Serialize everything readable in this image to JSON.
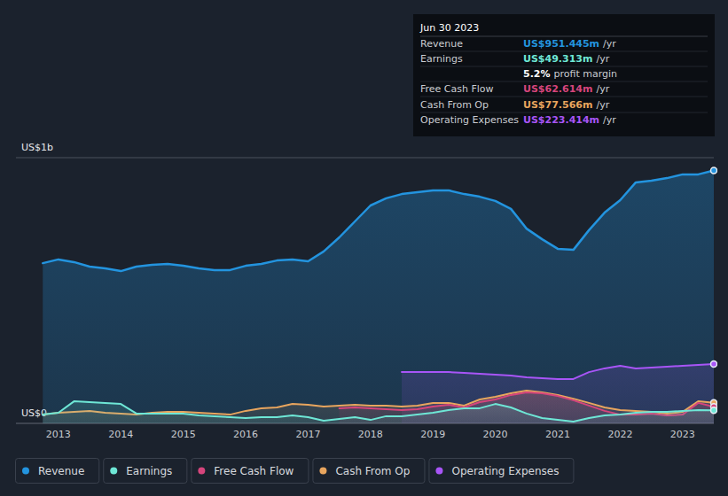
{
  "chart_data": {
    "type": "area",
    "x": [
      2012.75,
      2013.0,
      2013.25,
      2013.5,
      2013.75,
      2014.0,
      2014.25,
      2014.5,
      2014.75,
      2015.0,
      2015.25,
      2015.5,
      2015.75,
      2016.0,
      2016.25,
      2016.5,
      2016.75,
      2017.0,
      2017.25,
      2017.5,
      2017.75,
      2018.0,
      2018.25,
      2018.5,
      2018.75,
      2019.0,
      2019.25,
      2019.5,
      2019.75,
      2020.0,
      2020.25,
      2020.5,
      2020.75,
      2021.0,
      2021.25,
      2021.5,
      2021.75,
      2022.0,
      2022.25,
      2022.5,
      2022.75,
      2023.0,
      2023.25,
      2023.5
    ],
    "series": [
      {
        "name": "Revenue",
        "color": "#2394df",
        "type": "area",
        "values": [
          603,
          617,
          607,
          590,
          583,
          573,
          590,
          597,
          600,
          593,
          583,
          577,
          577,
          593,
          600,
          613,
          617,
          610,
          647,
          700,
          760,
          820,
          847,
          863,
          870,
          877,
          877,
          863,
          853,
          837,
          807,
          733,
          693,
          657,
          653,
          727,
          793,
          840,
          907,
          913,
          923,
          937,
          937,
          951.445
        ]
      },
      {
        "name": "Earnings",
        "color": "#6ee7d6",
        "type": "area",
        "values": [
          33,
          40,
          83,
          80,
          77,
          73,
          37,
          37,
          37,
          37,
          30,
          27,
          23,
          20,
          23,
          23,
          30,
          23,
          10,
          17,
          23,
          13,
          27,
          27,
          33,
          40,
          50,
          57,
          57,
          73,
          60,
          37,
          20,
          13,
          7,
          20,
          30,
          33,
          40,
          43,
          43,
          47,
          50,
          49.313
        ]
      },
      {
        "name": "Free Cash Flow",
        "color": "#d6457c",
        "type": "area",
        "values": [
          null,
          null,
          null,
          null,
          null,
          null,
          null,
          null,
          null,
          null,
          null,
          null,
          null,
          null,
          null,
          null,
          null,
          null,
          null,
          57,
          60,
          57,
          53,
          50,
          53,
          63,
          70,
          60,
          80,
          90,
          107,
          117,
          113,
          103,
          87,
          67,
          47,
          33,
          33,
          37,
          30,
          33,
          77,
          62.614
        ]
      },
      {
        "name": "Cash From Op",
        "color": "#e8a55e",
        "type": "area",
        "values": [
          33,
          40,
          43,
          47,
          40,
          37,
          33,
          40,
          43,
          43,
          40,
          37,
          33,
          47,
          57,
          60,
          73,
          70,
          63,
          67,
          70,
          67,
          67,
          63,
          67,
          77,
          77,
          67,
          90,
          100,
          113,
          123,
          117,
          107,
          93,
          77,
          60,
          50,
          47,
          43,
          37,
          43,
          83,
          77.566
        ]
      },
      {
        "name": "Operating Expenses",
        "color": "#a855f7",
        "type": "area",
        "values": [
          null,
          null,
          null,
          null,
          null,
          null,
          null,
          null,
          null,
          null,
          null,
          null,
          null,
          null,
          null,
          null,
          null,
          null,
          null,
          null,
          null,
          null,
          null,
          193,
          193,
          193,
          193,
          190,
          187,
          183,
          180,
          173,
          170,
          167,
          167,
          193,
          207,
          217,
          207,
          210,
          213,
          217,
          220,
          223.414
        ]
      }
    ],
    "xlim": [
      2012.32,
      2023.5
    ],
    "xticks": [
      2013,
      2014,
      2015,
      2016,
      2017,
      2018,
      2019,
      2020,
      2021,
      2022,
      2023
    ],
    "ylim": [
      0,
      1000
    ],
    "yticks": [
      {
        "value": 0,
        "label": "US$0"
      },
      {
        "value": 1000,
        "label": "US$1b"
      }
    ],
    "grid": true,
    "legend": "bottom",
    "annotation": {
      "title": "Jun 30 2023",
      "rows": [
        {
          "label": "Revenue",
          "value": "US$951.445m",
          "suffix": "/yr",
          "color": "#2394df"
        },
        {
          "label": "Earnings",
          "value": "US$49.313m",
          "suffix": "/yr",
          "color": "#6ee7d6"
        },
        {
          "value": "5.2%",
          "suffix": "profit margin",
          "color": "#ffffff"
        },
        {
          "label": "Free Cash Flow",
          "value": "US$62.614m",
          "suffix": "/yr",
          "color": "#d6457c"
        },
        {
          "label": "Cash From Op",
          "value": "US$77.566m",
          "suffix": "/yr",
          "color": "#e8a55e"
        },
        {
          "label": "Operating Expenses",
          "value": "US$223.414m",
          "suffix": "/yr",
          "color": "#a855f7"
        }
      ]
    }
  }
}
